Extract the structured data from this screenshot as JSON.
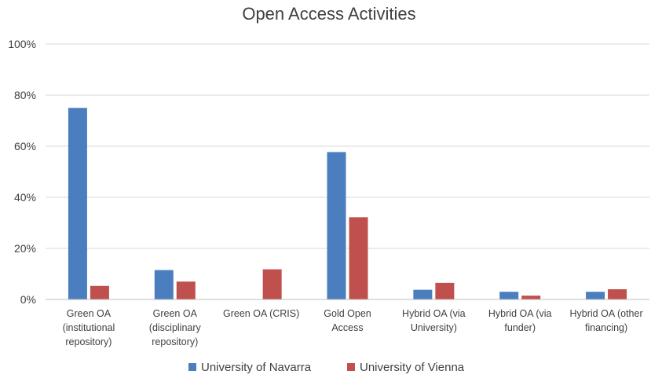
{
  "chart_data": {
    "type": "bar",
    "title": "Open Access Activities",
    "xlabel": "",
    "ylabel": "",
    "ylim": [
      0,
      100
    ],
    "y_ticks": [
      "0%",
      "20%",
      "40%",
      "60%",
      "80%",
      "100%"
    ],
    "grid": true,
    "legend_position": "bottom",
    "categories": [
      [
        "Green OA",
        "(institutional",
        "repository)"
      ],
      [
        "Green OA",
        "(disciplinary",
        "repository)"
      ],
      [
        "Green OA (CRIS)"
      ],
      [
        "Gold Open",
        "Access"
      ],
      [
        "Hybrid OA (via",
        "University)"
      ],
      [
        "Hybrid OA (via",
        "funder)"
      ],
      [
        "Hybrid OA (other",
        "financing)"
      ]
    ],
    "series": [
      {
        "name": "University of Navarra",
        "color": "#4a7ebf",
        "values": [
          75,
          11.5,
          0,
          57.7,
          3.8,
          3.0,
          3.0
        ]
      },
      {
        "name": "University of Vienna",
        "color": "#c0504d",
        "values": [
          5.3,
          7.0,
          11.8,
          32.2,
          6.5,
          1.5,
          4.0
        ]
      }
    ]
  }
}
